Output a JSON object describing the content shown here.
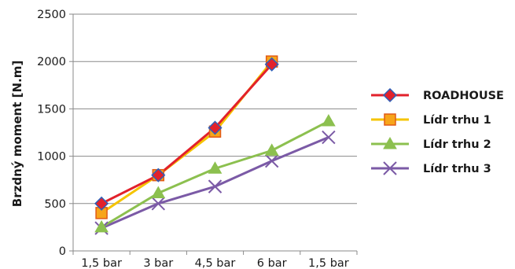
{
  "chart_data": {
    "type": "line",
    "title": "",
    "xlabel": "",
    "ylabel": "Brzdný moment [N.m]",
    "ylim": [
      0,
      2500
    ],
    "yticks": [
      0,
      500,
      1000,
      1500,
      2000,
      2500
    ],
    "grid": "horizontal",
    "legend_position": "right",
    "categories": [
      "1,5 bar",
      "3 bar",
      "4,5 bar",
      "6 bar",
      "1,5 bar"
    ],
    "series": [
      {
        "name": "ROADHOUSE",
        "color": "#e2212b",
        "marker": "diamond",
        "marker_color": "#e2212b",
        "marker_stroke": "#2e5fb8",
        "values": [
          500,
          800,
          1300,
          1970,
          null
        ]
      },
      {
        "name": "Lídr trhu 1",
        "color": "#f5c400",
        "marker": "square",
        "marker_color": "#f7a51a",
        "marker_stroke": "#e05a16",
        "values": [
          400,
          800,
          1260,
          2000,
          null
        ]
      },
      {
        "name": "Lídr trhu 2",
        "color": "#8cc04f",
        "marker": "triangle",
        "marker_color": "#8cc04f",
        "marker_stroke": "#8cc04f",
        "values": [
          250,
          610,
          870,
          1060,
          1370
        ]
      },
      {
        "name": "Lídr trhu 3",
        "color": "#7b5aa6",
        "marker": "x",
        "marker_color": "#7b5aa6",
        "marker_stroke": "#7b5aa6",
        "values": [
          240,
          500,
          680,
          950,
          1200
        ]
      }
    ]
  }
}
